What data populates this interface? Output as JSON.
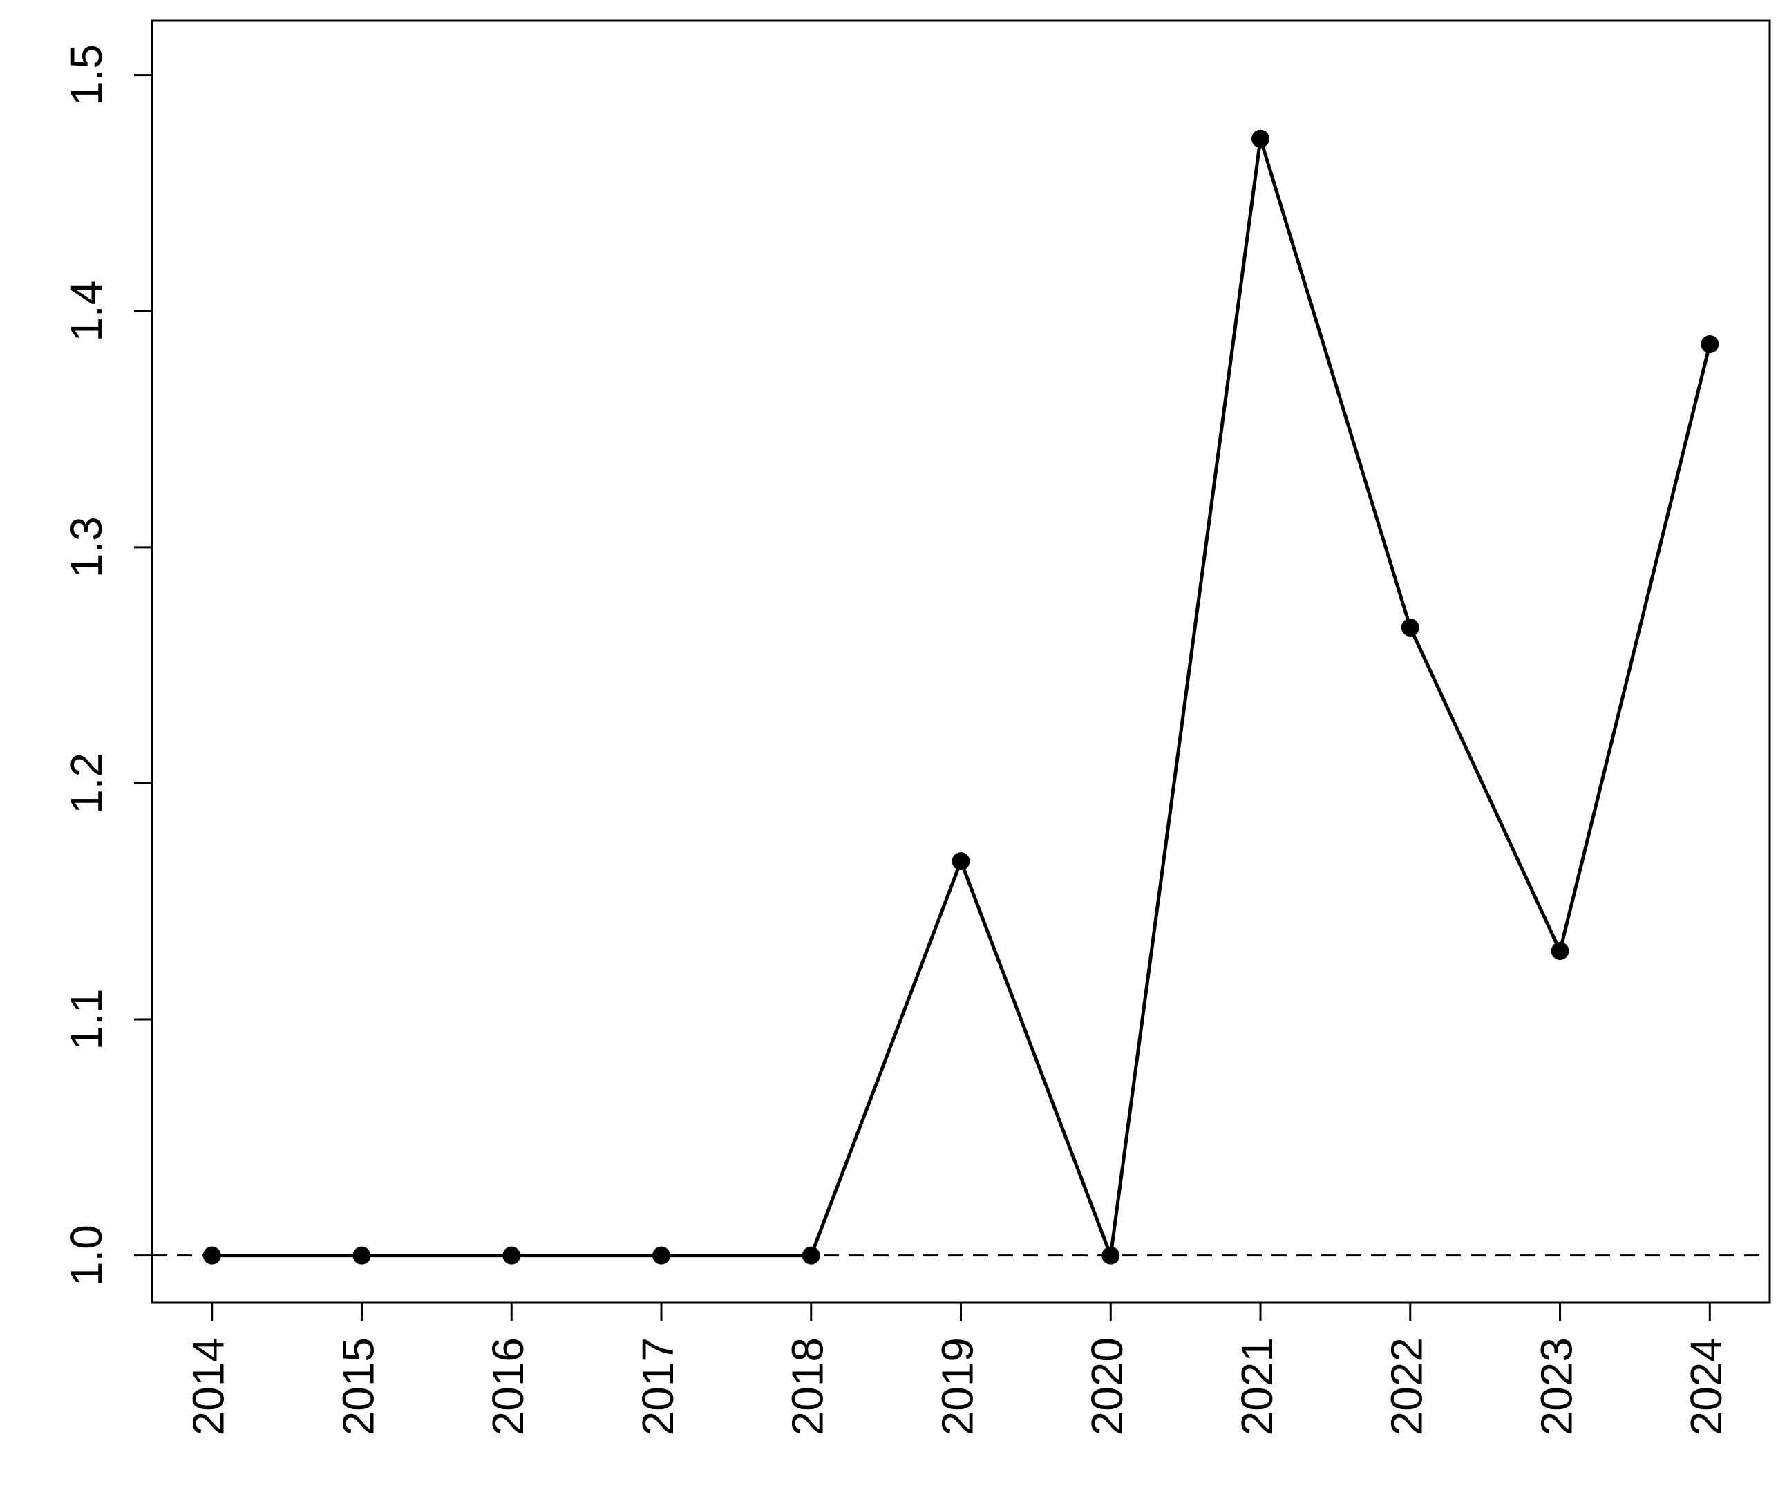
{
  "chart_data": {
    "type": "line",
    "x": [
      2014,
      2015,
      2016,
      2017,
      2018,
      2019,
      2020,
      2021,
      2022,
      2023,
      2024
    ],
    "values": [
      1.0,
      1.0,
      1.0,
      1.0,
      1.0,
      1.167,
      1.0,
      1.473,
      1.266,
      1.129,
      1.386
    ],
    "color": "#000000",
    "xlim": [
      2013.6,
      2024.4
    ],
    "xticks": [
      2014,
      2015,
      2016,
      2017,
      2018,
      2019,
      2020,
      2021,
      2022,
      2023,
      2024
    ],
    "ylim": [
      0.98,
      1.523
    ],
    "yticks": [
      {
        "value": 1,
        "label": "1.0"
      },
      1.1,
      1.2,
      1.3,
      1.4,
      1.5
    ],
    "reference_line": 1,
    "grid": false
  }
}
